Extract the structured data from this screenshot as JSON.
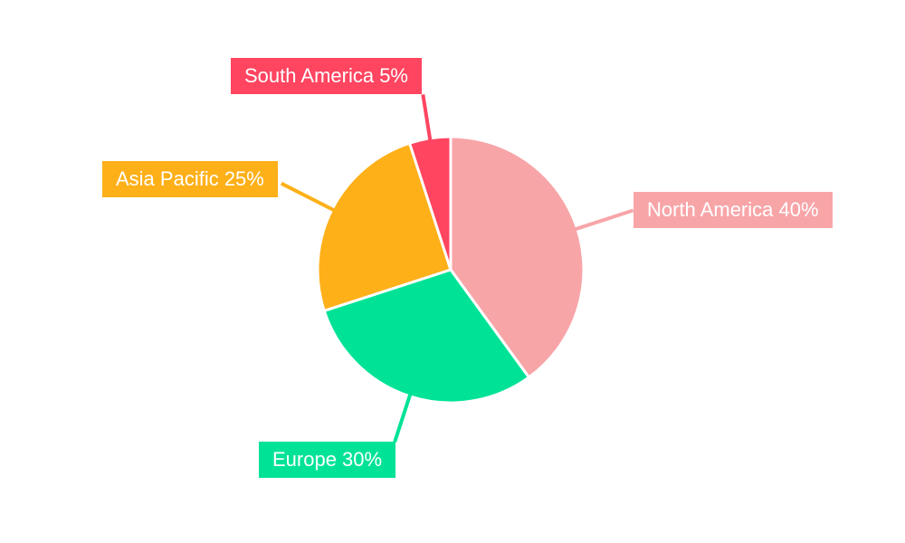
{
  "page": {
    "background_color": "#ffffff"
  },
  "chart_data": {
    "type": "pie",
    "title": "",
    "categories": [
      "North America",
      "Europe",
      "Asia Pacific",
      "South America"
    ],
    "values": [
      40,
      30,
      25,
      5
    ],
    "unit": "%",
    "colors": [
      "#F8A5A8",
      "#00E396",
      "#FEB019",
      "#FF4560"
    ],
    "start_angle_deg": 0,
    "direction": "clockwise",
    "legend": "none",
    "label_style": {
      "text_color": "#ffffff",
      "shape": "rectangle-with-leader-line"
    },
    "callouts": [
      {
        "text": "North America 40%",
        "color": "#F8A5A8"
      },
      {
        "text": "Europe 30%",
        "color": "#00E396"
      },
      {
        "text": "Asia Pacific 25%",
        "color": "#FEB019"
      },
      {
        "text": "South America 5%",
        "color": "#FF4560"
      }
    ]
  }
}
